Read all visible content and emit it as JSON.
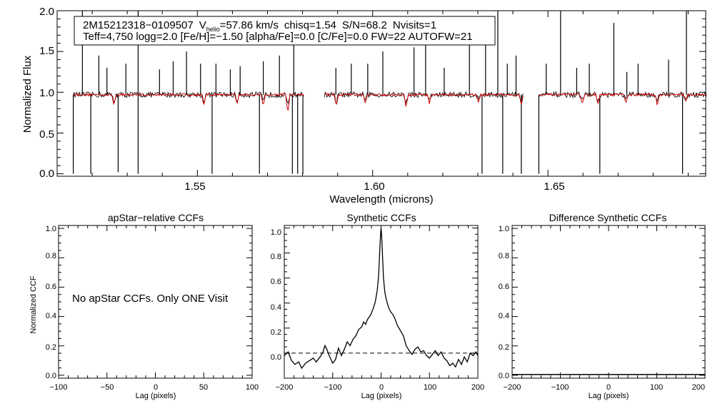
{
  "chart_data": [
    {
      "type": "line",
      "panel": "spectrum",
      "xlabel": "Wavelength (microns)",
      "ylabel": "Normalized Flux",
      "xlim": [
        1.51,
        1.695
      ],
      "ylim": [
        -0.03,
        2.0
      ],
      "x_ticks": [
        "1.55",
        "1.60",
        "1.65"
      ],
      "y_ticks": [
        "0.0",
        "0.5",
        "1.0",
        "1.5",
        "2.0"
      ],
      "info": {
        "object_id": "2M15212318−0109507",
        "v_symbol": "V",
        "v_subscript": "helio",
        "v_value": "=57.86 km/s",
        "chisq": "chisq=1.54",
        "snr": "S/N=68.2",
        "nvisits": "Nvisits=1",
        "line2": "Teff=4,750 logg=2.0 [Fe/H]=−1.50 [alpha/Fe]=0.0 [C/Fe]=0.0 FW=22 AUTOFW=21"
      },
      "series": [
        {
          "name": "observed",
          "color": "#000000",
          "baseline": 0.97
        },
        {
          "name": "synthetic",
          "color": "#cc0000",
          "baseline": 0.97
        }
      ],
      "chip_ranges": [
        [
          1.5146,
          1.5804
        ],
        [
          1.5862,
          1.6429
        ],
        [
          1.6474,
          1.6953
        ]
      ],
      "emission_spikes": [
        {
          "x": 1.5172,
          "y": 2.0
        },
        {
          "x": 1.5219,
          "y": 1.45
        },
        {
          "x": 1.5242,
          "y": 1.3
        },
        {
          "x": 1.5296,
          "y": 1.35
        },
        {
          "x": 1.5331,
          "y": 2.0
        },
        {
          "x": 1.5392,
          "y": 1.28
        },
        {
          "x": 1.5431,
          "y": 1.38
        },
        {
          "x": 1.5469,
          "y": 1.5
        },
        {
          "x": 1.5509,
          "y": 1.35
        },
        {
          "x": 1.5553,
          "y": 1.35
        },
        {
          "x": 1.5594,
          "y": 1.28
        },
        {
          "x": 1.5622,
          "y": 1.32
        },
        {
          "x": 1.5688,
          "y": 1.38
        },
        {
          "x": 1.5734,
          "y": 1.45
        },
        {
          "x": 1.5775,
          "y": 1.7
        },
        {
          "x": 1.5895,
          "y": 1.3
        },
        {
          "x": 1.5939,
          "y": 1.35
        },
        {
          "x": 1.5986,
          "y": 1.35
        },
        {
          "x": 1.6029,
          "y": 1.5
        },
        {
          "x": 1.6118,
          "y": 1.55
        },
        {
          "x": 1.6151,
          "y": 1.6
        },
        {
          "x": 1.6204,
          "y": 1.3
        },
        {
          "x": 1.6276,
          "y": 1.7
        },
        {
          "x": 1.6322,
          "y": 1.9
        },
        {
          "x": 1.6357,
          "y": 2.0
        },
        {
          "x": 1.6384,
          "y": 1.35
        },
        {
          "x": 1.6409,
          "y": 1.45
        },
        {
          "x": 1.6495,
          "y": 1.35
        },
        {
          "x": 1.6536,
          "y": 2.0
        },
        {
          "x": 1.6582,
          "y": 1.3
        },
        {
          "x": 1.6618,
          "y": 1.35
        },
        {
          "x": 1.6688,
          "y": 1.85
        },
        {
          "x": 1.6725,
          "y": 1.25
        },
        {
          "x": 1.6757,
          "y": 1.35
        },
        {
          "x": 1.6844,
          "y": 1.4
        },
        {
          "x": 1.6895,
          "y": 2.0
        }
      ],
      "absorption_dips": [
        {
          "x": 1.5146,
          "y": 0.0
        },
        {
          "x": 1.5196,
          "y": 0.0
        },
        {
          "x": 1.5274,
          "y": 0.02
        },
        {
          "x": 1.5331,
          "y": 0.0
        },
        {
          "x": 1.5542,
          "y": 0.0
        },
        {
          "x": 1.5677,
          "y": 0.0
        },
        {
          "x": 1.5771,
          "y": 0.0
        },
        {
          "x": 1.5786,
          "y": 0.0
        },
        {
          "x": 1.5801,
          "y": 0.0
        },
        {
          "x": 1.6312,
          "y": 0.0
        },
        {
          "x": 1.6371,
          "y": 0.0
        },
        {
          "x": 1.6424,
          "y": 0.0
        },
        {
          "x": 1.6474,
          "y": 0.0
        },
        {
          "x": 1.6648,
          "y": 0.0
        },
        {
          "x": 1.6884,
          "y": 0.0
        }
      ],
      "synthetic_lines": [
        {
          "x": 1.5262,
          "y": 0.84
        },
        {
          "x": 1.5518,
          "y": 0.84
        },
        {
          "x": 1.5613,
          "y": 0.86
        },
        {
          "x": 1.5688,
          "y": 0.84
        },
        {
          "x": 1.5758,
          "y": 0.74
        },
        {
          "x": 1.5896,
          "y": 0.82
        },
        {
          "x": 1.5979,
          "y": 0.86
        },
        {
          "x": 1.6095,
          "y": 0.82
        },
        {
          "x": 1.6162,
          "y": 0.86
        },
        {
          "x": 1.6302,
          "y": 0.87
        },
        {
          "x": 1.6424,
          "y": 0.86
        },
        {
          "x": 1.6598,
          "y": 0.86
        },
        {
          "x": 1.6643,
          "y": 0.84
        },
        {
          "x": 1.6722,
          "y": 0.86
        },
        {
          "x": 1.6812,
          "y": 0.84
        },
        {
          "x": 1.6893,
          "y": 0.9
        }
      ]
    },
    {
      "type": "line",
      "panel": "apstar",
      "title": "apStar−relative CCFs",
      "xlabel": "Lag (pixels)",
      "ylabel": "Normalized CCF",
      "xlim": [
        -100,
        100
      ],
      "ylim": [
        -0.02,
        1.02
      ],
      "x_ticks": [
        "−100",
        "−50",
        "0",
        "50",
        "100"
      ],
      "y_ticks": [
        "0.0",
        "0.2",
        "0.4",
        "0.6",
        "0.8",
        "1.0"
      ],
      "message": "No apStar CCFs.  Only ONE Visit",
      "series": []
    },
    {
      "type": "line",
      "panel": "synthetic",
      "title": "Synthetic CCFs",
      "xlabel": "Lag (pixels)",
      "ylabel": "",
      "xlim": [
        -200,
        200
      ],
      "ylim": [
        -0.2,
        1.02
      ],
      "x_ticks": [
        "−200",
        "−100",
        "0",
        "100",
        "200"
      ],
      "y_ticks": [
        "0.0",
        "0.2",
        "0.4",
        "0.6",
        "0.8",
        "1.0"
      ],
      "series": [
        {
          "name": "ccf",
          "color": "#000000",
          "x": [
            -200,
            -192,
            -185,
            -178,
            -170,
            -164,
            -156,
            -148,
            -140,
            -134,
            -126,
            -120,
            -116,
            -112,
            -106,
            -100,
            -94,
            -88,
            -82,
            -76,
            -70,
            -64,
            -58,
            -52,
            -46,
            -40,
            -36,
            -32,
            -28,
            -24,
            -20,
            -16,
            -12,
            -8,
            -5,
            -3,
            -1,
            0,
            1,
            3,
            5,
            8,
            12,
            16,
            20,
            24,
            28,
            34,
            40,
            46,
            52,
            58,
            64,
            70,
            76,
            82,
            88,
            94,
            100,
            106,
            112,
            118,
            124,
            130,
            136,
            142,
            148,
            154,
            160,
            166,
            172,
            178,
            184,
            190,
            196,
            200
          ],
          "y": [
            -0.02,
            0.01,
            -0.06,
            -0.09,
            -0.07,
            -0.12,
            -0.08,
            -0.06,
            -0.04,
            -0.07,
            -0.03,
            0.01,
            0.06,
            0.03,
            -0.03,
            -0.08,
            -0.05,
            0.04,
            -0.02,
            0.03,
            0.09,
            0.06,
            0.11,
            0.14,
            0.19,
            0.21,
            0.25,
            0.23,
            0.27,
            0.29,
            0.32,
            0.36,
            0.41,
            0.5,
            0.62,
            0.8,
            0.95,
            1.0,
            0.95,
            0.78,
            0.6,
            0.48,
            0.41,
            0.36,
            0.33,
            0.31,
            0.28,
            0.22,
            0.18,
            0.14,
            0.06,
            0.02,
            -0.01,
            0.03,
            0.05,
            0.01,
            0.02,
            -0.02,
            -0.04,
            -0.01,
            0.02,
            -0.02,
            0.01,
            -0.04,
            -0.06,
            -0.1,
            -0.08,
            -0.11,
            -0.05,
            -0.09,
            -0.03,
            -0.07,
            0.0,
            -0.02,
            0.01,
            -0.02
          ]
        },
        {
          "name": "zero",
          "color": "#000000",
          "style": "dashed",
          "y_const": 0.0
        }
      ]
    },
    {
      "type": "line",
      "panel": "difference",
      "title": "Difference Synthetic CCFs",
      "xlabel": "Lag (pixels)",
      "ylabel": "",
      "xlim": [
        -200,
        200
      ],
      "ylim": [
        -0.02,
        1.02
      ],
      "x_ticks": [
        "−200",
        "−100",
        "0",
        "100",
        "200"
      ],
      "y_ticks": [
        "0.0",
        "0.2",
        "0.4",
        "0.6",
        "0.8",
        "1.0"
      ],
      "series": [
        {
          "name": "zero",
          "color": "#000000",
          "y_const": 0.0
        }
      ]
    }
  ]
}
